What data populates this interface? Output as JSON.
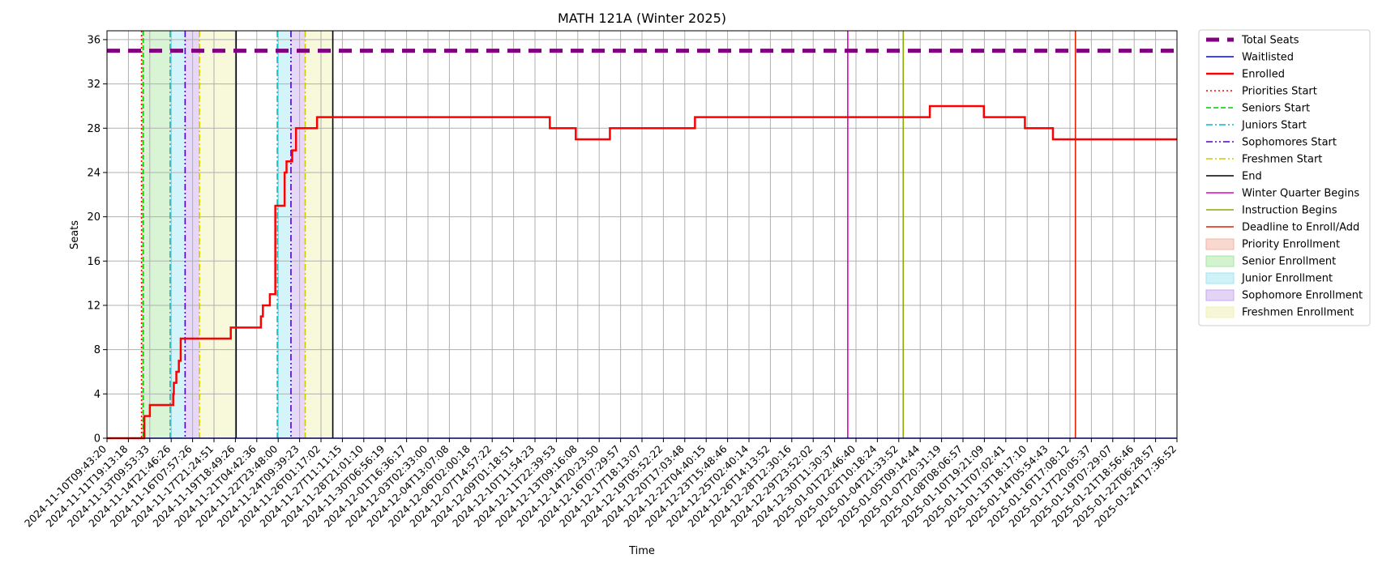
{
  "chart_data": {
    "type": "line",
    "title": "MATH 121A (Winter 2025)",
    "xlabel": "Time",
    "ylabel": "Seats",
    "ylim": [
      0,
      36.8
    ],
    "xlim": [
      "2024-11-10T09:43:20",
      "2025-01-25T17:36:52"
    ],
    "y_ticks": [
      0,
      4,
      8,
      12,
      16,
      20,
      24,
      28,
      32,
      36
    ],
    "x_ticks": [
      "2024-11-10T09:43:20",
      "2024-11-11T19:13:18",
      "2024-11-13T09:53:33",
      "2024-11-14T21:46:26",
      "2024-11-16T07:57:26",
      "2024-11-17T21:24:51",
      "2024-11-19T18:49:26",
      "2024-11-21T04:42:36",
      "2024-11-22T23:48:00",
      "2024-11-24T09:39:23",
      "2024-11-26T01:17:02",
      "2024-11-27T11:11:15",
      "2024-11-28T21:01:10",
      "2024-11-30T06:56:19",
      "2024-12-01T16:36:17",
      "2024-12-03T02:33:00",
      "2024-12-04T13:07:08",
      "2024-12-06T02:00:18",
      "2024-12-07T14:57:22",
      "2024-12-09T01:18:51",
      "2024-12-10T11:54:23",
      "2024-12-11T22:39:53",
      "2024-12-13T09:16:08",
      "2024-12-14T20:23:50",
      "2024-12-16T07:29:57",
      "2024-12-17T18:13:07",
      "2024-12-19T05:52:22",
      "2024-12-20T17:03:48",
      "2024-12-22T04:40:15",
      "2024-12-23T15:48:46",
      "2024-12-25T02:40:14",
      "2024-12-26T14:13:52",
      "2024-12-28T12:30:16",
      "2024-12-29T23:52:02",
      "2024-12-30T11:30:37",
      "2025-01-01T22:46:40",
      "2025-01-02T10:18:24",
      "2025-01-04T21:33:52",
      "2025-01-05T09:14:44",
      "2025-01-07T20:31:19",
      "2025-01-08T08:06:57",
      "2025-01-10T19:21:09",
      "2025-01-11T07:02:41",
      "2025-01-13T18:17:10",
      "2025-01-14T05:54:43",
      "2025-01-16T17:08:12",
      "2025-01-17T20:05:37",
      "2025-01-19T07:29:07",
      "2025-01-21T18:56:46",
      "2025-01-22T06:28:57",
      "2025-01-24T17:36:52"
    ],
    "grid": true,
    "legend_position": "outside-right",
    "series": [
      {
        "name": "Total Seats",
        "color": "#800080",
        "style": "dashed-thick",
        "points": [
          [
            "2024-11-10T09:43:20",
            35
          ],
          [
            "2025-01-25T17:36:52",
            35
          ]
        ]
      },
      {
        "name": "Waitlisted",
        "color": "#0000ff",
        "style": "solid",
        "points": [
          [
            "2024-11-10T09:43:20",
            0
          ],
          [
            "2025-01-25T17:36:52",
            0
          ]
        ]
      },
      {
        "name": "Enrolled",
        "color": "#ff0000",
        "style": "step",
        "points": [
          [
            "2024-11-10T09:43:20",
            0
          ],
          [
            "2024-11-13T00:00:00",
            2
          ],
          [
            "2024-11-13T10:00:00",
            3
          ],
          [
            "2024-11-15T01:00:00",
            4
          ],
          [
            "2024-11-15T02:00:00",
            5
          ],
          [
            "2024-11-15T06:00:00",
            6
          ],
          [
            "2024-11-15T10:00:00",
            7
          ],
          [
            "2024-11-15T13:00:00",
            9
          ],
          [
            "2024-11-19T09:00:00",
            10
          ],
          [
            "2024-11-21T13:00:00",
            11
          ],
          [
            "2024-11-21T17:00:00",
            12
          ],
          [
            "2024-11-22T07:00:00",
            13
          ],
          [
            "2024-11-22T18:00:00",
            21
          ],
          [
            "2024-11-23T10:00:00",
            24
          ],
          [
            "2024-11-23T13:00:00",
            25
          ],
          [
            "2024-11-23T22:00:00",
            26
          ],
          [
            "2024-11-24T04:00:00",
            28
          ],
          [
            "2024-11-25T18:00:00",
            29
          ],
          [
            "2024-12-11T12:00:00",
            28
          ],
          [
            "2024-12-13T06:00:00",
            27
          ],
          [
            "2024-12-15T14:00:00",
            28
          ],
          [
            "2024-12-21T10:00:00",
            29
          ],
          [
            "2025-01-06T12:00:00",
            30
          ],
          [
            "2025-01-10T18:00:00",
            29
          ],
          [
            "2025-01-13T12:00:00",
            28
          ],
          [
            "2025-01-14T18:00:00",
            27
          ],
          [
            "2025-01-25T17:36:52",
            27
          ]
        ]
      }
    ],
    "vertical_lines": [
      {
        "name": "Priorities Start",
        "color": "#ff0000",
        "style": "dotted",
        "x": "2024-11-12T19:00:00"
      },
      {
        "name": "Seniors Start",
        "color": "#00cc00",
        "style": "dashed",
        "x": "2024-11-12T22:00:00"
      },
      {
        "name": "Juniors Start",
        "color": "#00bfc8",
        "style": "dashdot",
        "x": "2024-11-14T20:00:00"
      },
      {
        "name": "Juniors Start",
        "color": "#00bfc8",
        "style": "dashdot",
        "x": "2024-11-22T22:00:00"
      },
      {
        "name": "Sophomores Start",
        "color": "#5500cc",
        "style": "dashdotdot",
        "x": "2024-11-15T20:00:00"
      },
      {
        "name": "Sophomores Start",
        "color": "#5500cc",
        "style": "dashdotdot",
        "x": "2024-11-23T20:00:00"
      },
      {
        "name": "Freshmen Start",
        "color": "#d4c800",
        "style": "dashdot",
        "x": "2024-11-16T20:00:00"
      },
      {
        "name": "Freshmen Start",
        "color": "#d4c800",
        "style": "dashdot",
        "x": "2024-11-24T20:00:00"
      },
      {
        "name": "End",
        "color": "#000000",
        "style": "solid",
        "x": "2024-11-19T20:00:00"
      },
      {
        "name": "End",
        "color": "#000000",
        "style": "solid",
        "x": "2024-11-26T20:00:00"
      },
      {
        "name": "Winter Quarter Begins",
        "color": "#e000c0",
        "style": "solid",
        "x": "2025-01-01T00:00:00"
      },
      {
        "name": "Instruction Begins",
        "color": "#88aa00",
        "style": "solid",
        "x": "2025-01-05T00:00:00"
      },
      {
        "name": "Deadline to Enroll/Add",
        "color": "#dd2200",
        "style": "solid",
        "x": "2025-01-17T00:00:00"
      }
    ],
    "spans": [
      {
        "name": "Priority Enrollment",
        "color": "#f4b3a0",
        "from": "2024-11-12T19:00:00",
        "to": "2024-11-12T22:00:00"
      },
      {
        "name": "Senior Enrollment",
        "color": "#a8e6a0",
        "from": "2024-11-12T22:00:00",
        "to": "2024-11-14T20:00:00"
      },
      {
        "name": "Junior Enrollment",
        "color": "#9ee6f0",
        "from": "2024-11-14T20:00:00",
        "to": "2024-11-15T20:00:00"
      },
      {
        "name": "Junior Enrollment",
        "color": "#9ee6f0",
        "from": "2024-11-22T22:00:00",
        "to": "2024-11-23T20:00:00"
      },
      {
        "name": "Sophomore Enrollment",
        "color": "#c7a8ec",
        "from": "2024-11-15T20:00:00",
        "to": "2024-11-16T20:00:00"
      },
      {
        "name": "Sophomore Enrollment",
        "color": "#c7a8ec",
        "from": "2024-11-23T20:00:00",
        "to": "2024-11-24T20:00:00"
      },
      {
        "name": "Freshmen Enrollment",
        "color": "#f0f0b0",
        "from": "2024-11-16T20:00:00",
        "to": "2024-11-19T20:00:00"
      },
      {
        "name": "Freshmen Enrollment",
        "color": "#f0f0b0",
        "from": "2024-11-24T20:00:00",
        "to": "2024-11-26T20:00:00"
      }
    ],
    "legend": [
      {
        "label": "Total Seats",
        "kind": "line",
        "color": "#800080",
        "style": "dashed-thick"
      },
      {
        "label": "Waitlisted",
        "kind": "line",
        "color": "#0000ff",
        "style": "solid"
      },
      {
        "label": "Enrolled",
        "kind": "line",
        "color": "#ff0000",
        "style": "solid-thick"
      },
      {
        "label": "Priorities Start",
        "kind": "line",
        "color": "#ff0000",
        "style": "dotted"
      },
      {
        "label": "Seniors Start",
        "kind": "line",
        "color": "#00cc00",
        "style": "dashed"
      },
      {
        "label": "Juniors Start",
        "kind": "line",
        "color": "#00bfc8",
        "style": "dashdot"
      },
      {
        "label": "Sophomores Start",
        "kind": "line",
        "color": "#5500cc",
        "style": "dashdotdot"
      },
      {
        "label": "Freshmen Start",
        "kind": "line",
        "color": "#d4c800",
        "style": "dashdot"
      },
      {
        "label": "End",
        "kind": "line",
        "color": "#000000",
        "style": "solid"
      },
      {
        "label": "Winter Quarter Begins",
        "kind": "line",
        "color": "#e000c0",
        "style": "solid"
      },
      {
        "label": "Instruction Begins",
        "kind": "line",
        "color": "#88aa00",
        "style": "solid"
      },
      {
        "label": "Deadline to Enroll/Add",
        "kind": "line",
        "color": "#dd2200",
        "style": "solid"
      },
      {
        "label": "Priority Enrollment",
        "kind": "patch",
        "color": "#f4b3a0"
      },
      {
        "label": "Senior Enrollment",
        "kind": "patch",
        "color": "#a8e6a0"
      },
      {
        "label": "Junior Enrollment",
        "kind": "patch",
        "color": "#9ee6f0"
      },
      {
        "label": "Sophomore Enrollment",
        "kind": "patch",
        "color": "#c7a8ec"
      },
      {
        "label": "Freshmen Enrollment",
        "kind": "patch",
        "color": "#f0f0b0"
      }
    ]
  }
}
